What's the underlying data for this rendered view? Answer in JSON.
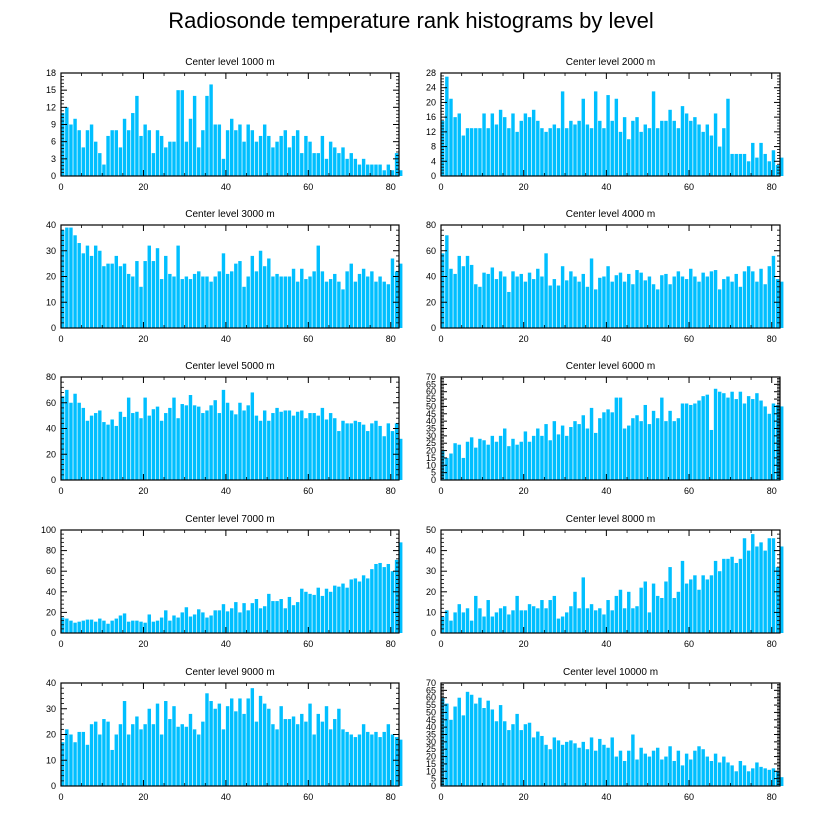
{
  "title": "Radiosonde temperature rank histograms by level",
  "bar_color": "#00bfff",
  "chart_data": [
    {
      "type": "bar",
      "title": "Center level 1000 m",
      "xlim": [
        0,
        82
      ],
      "xticks": [
        0,
        20,
        40,
        60,
        80
      ],
      "ylim": [
        0,
        18
      ],
      "yticks": [
        0,
        3,
        6,
        9,
        12,
        15,
        18
      ],
      "values": [
        11,
        12,
        9,
        10,
        8,
        5,
        8,
        9,
        6,
        4,
        2,
        7,
        8,
        8,
        5,
        10,
        8,
        11,
        14,
        7,
        9,
        8,
        4,
        8,
        7,
        5,
        6,
        6,
        15,
        15,
        6,
        10,
        14,
        5,
        8,
        14,
        16,
        9,
        9,
        3,
        8,
        10,
        8,
        9,
        6,
        9,
        8,
        6,
        7,
        9,
        7,
        5,
        6,
        7,
        8,
        5,
        7,
        8,
        4,
        7,
        6,
        4,
        4,
        7,
        3,
        6,
        5,
        4,
        5,
        3,
        4,
        3,
        2,
        3,
        2,
        2,
        2,
        2,
        1,
        2,
        1,
        4,
        1
      ]
    },
    {
      "type": "bar",
      "title": "Center level 2000 m",
      "xlim": [
        0,
        82
      ],
      "xticks": [
        0,
        20,
        40,
        60,
        80
      ],
      "ylim": [
        0,
        28
      ],
      "yticks": [
        0,
        4,
        8,
        12,
        16,
        20,
        24,
        28
      ],
      "values": [
        15,
        27,
        21,
        16,
        17,
        11,
        13,
        13,
        13,
        13,
        17,
        13,
        17,
        14,
        18,
        16,
        13,
        17,
        12,
        15,
        17,
        16,
        18,
        15,
        13,
        12,
        13,
        14,
        13,
        23,
        13,
        15,
        14,
        15,
        21,
        14,
        13,
        23,
        15,
        13,
        22,
        15,
        21,
        12,
        16,
        10,
        15,
        16,
        12,
        14,
        13,
        23,
        13,
        15,
        15,
        18,
        15,
        13,
        19,
        17,
        15,
        16,
        14,
        12,
        14,
        11,
        17,
        8,
        13,
        21,
        6,
        6,
        6,
        6,
        4,
        9,
        5,
        9,
        6,
        4,
        7,
        3,
        5
      ]
    },
    {
      "type": "bar",
      "title": "Center level 3000 m",
      "xlim": [
        0,
        82
      ],
      "xticks": [
        0,
        20,
        40,
        60,
        80
      ],
      "ylim": [
        0,
        40
      ],
      "yticks": [
        0,
        10,
        20,
        30,
        40
      ],
      "values": [
        38,
        39,
        39,
        36,
        33,
        29,
        32,
        28,
        32,
        30,
        24,
        25,
        25,
        28,
        24,
        25,
        21,
        20,
        26,
        16,
        26,
        32,
        26,
        31,
        19,
        28,
        21,
        20,
        32,
        19,
        20,
        19,
        21,
        22,
        20,
        20,
        18,
        20,
        22,
        29,
        21,
        22,
        25,
        26,
        16,
        20,
        28,
        22,
        30,
        24,
        27,
        20,
        21,
        20,
        20,
        20,
        23,
        18,
        23,
        19,
        20,
        22,
        32,
        22,
        18,
        19,
        21,
        18,
        15,
        22,
        25,
        18,
        21,
        23,
        20,
        22,
        18,
        20,
        18,
        17,
        27,
        22,
        25
      ]
    },
    {
      "type": "bar",
      "title": "Center level 4000 m",
      "xlim": [
        0,
        82
      ],
      "xticks": [
        0,
        20,
        40,
        60,
        80
      ],
      "ylim": [
        0,
        80
      ],
      "yticks": [
        0,
        20,
        40,
        60,
        80
      ],
      "values": [
        58,
        72,
        46,
        42,
        56,
        48,
        56,
        49,
        34,
        32,
        43,
        42,
        47,
        38,
        44,
        40,
        28,
        44,
        40,
        42,
        36,
        43,
        38,
        46,
        40,
        58,
        33,
        38,
        33,
        48,
        37,
        44,
        40,
        36,
        42,
        32,
        54,
        30,
        39,
        40,
        48,
        36,
        41,
        43,
        36,
        42,
        34,
        45,
        43,
        37,
        40,
        34,
        30,
        41,
        42,
        34,
        40,
        44,
        40,
        38,
        46,
        40,
        36,
        43,
        40,
        44,
        45,
        30,
        38,
        40,
        36,
        42,
        32,
        44,
        48,
        44,
        36,
        46,
        34,
        48,
        56,
        38,
        36
      ]
    },
    {
      "type": "bar",
      "title": "Center level 5000 m",
      "xlim": [
        0,
        82
      ],
      "xticks": [
        0,
        20,
        40,
        60,
        80
      ],
      "ylim": [
        0,
        80
      ],
      "yticks": [
        0,
        20,
        40,
        60,
        80
      ],
      "values": [
        65,
        70,
        60,
        67,
        60,
        56,
        46,
        50,
        52,
        54,
        45,
        43,
        47,
        42,
        53,
        49,
        64,
        52,
        53,
        48,
        64,
        50,
        55,
        57,
        46,
        52,
        56,
        64,
        48,
        59,
        58,
        66,
        58,
        57,
        52,
        54,
        58,
        62,
        52,
        70,
        60,
        54,
        51,
        60,
        54,
        58,
        68,
        50,
        46,
        54,
        46,
        52,
        56,
        53,
        54,
        54,
        50,
        53,
        54,
        48,
        52,
        52,
        50,
        56,
        47,
        52,
        48,
        38,
        46,
        44,
        44,
        46,
        45,
        43,
        38,
        44,
        46,
        42,
        34,
        44,
        38,
        44,
        32
      ]
    },
    {
      "type": "bar",
      "title": "Center level 6000 m",
      "xlim": [
        0,
        82
      ],
      "xticks": [
        0,
        20,
        40,
        60,
        80
      ],
      "ylim": [
        0,
        70
      ],
      "yticks": [
        0,
        5,
        10,
        15,
        20,
        25,
        30,
        35,
        40,
        45,
        50,
        55,
        60,
        65,
        70
      ],
      "values": [
        20,
        15,
        18,
        25,
        24,
        15,
        26,
        29,
        22,
        28,
        27,
        24,
        30,
        26,
        30,
        35,
        23,
        28,
        24,
        26,
        33,
        26,
        30,
        35,
        30,
        38,
        27,
        40,
        31,
        37,
        30,
        36,
        40,
        38,
        44,
        35,
        49,
        32,
        42,
        46,
        48,
        46,
        56,
        56,
        35,
        37,
        42,
        44,
        40,
        51,
        38,
        47,
        42,
        56,
        40,
        47,
        40,
        42,
        52,
        52,
        51,
        52,
        54,
        57,
        58,
        34,
        62,
        60,
        59,
        56,
        60,
        55,
        60,
        52,
        57,
        55,
        59,
        54,
        50,
        45,
        52,
        51,
        50
      ]
    },
    {
      "type": "bar",
      "title": "Center level 7000 m",
      "xlim": [
        0,
        82
      ],
      "xticks": [
        0,
        20,
        40,
        60,
        80
      ],
      "ylim": [
        0,
        100
      ],
      "yticks": [
        0,
        20,
        40,
        60,
        80,
        100
      ],
      "values": [
        15,
        14,
        12,
        10,
        11,
        12,
        13,
        13,
        11,
        14,
        12,
        9,
        12,
        14,
        17,
        19,
        11,
        12,
        12,
        11,
        10,
        18,
        11,
        12,
        15,
        22,
        12,
        17,
        15,
        20,
        25,
        16,
        18,
        23,
        20,
        15,
        17,
        22,
        22,
        28,
        21,
        24,
        30,
        20,
        29,
        22,
        29,
        33,
        24,
        26,
        38,
        31,
        31,
        33,
        24,
        35,
        27,
        30,
        43,
        40,
        38,
        37,
        44,
        36,
        43,
        40,
        46,
        45,
        48,
        44,
        52,
        53,
        50,
        56,
        53,
        62,
        67,
        68,
        64,
        67,
        60,
        71,
        88
      ]
    },
    {
      "type": "bar",
      "title": "Center level 8000 m",
      "xlim": [
        0,
        82
      ],
      "xticks": [
        0,
        20,
        40,
        60,
        80
      ],
      "ylim": [
        0,
        50
      ],
      "yticks": [
        0,
        10,
        20,
        30,
        40,
        50
      ],
      "values": [
        8,
        11,
        6,
        10,
        14,
        10,
        12,
        6,
        18,
        12,
        8,
        16,
        8,
        10,
        12,
        13,
        9,
        11,
        18,
        11,
        11,
        14,
        13,
        12,
        16,
        12,
        16,
        18,
        7,
        8,
        10,
        13,
        20,
        12,
        27,
        12,
        14,
        11,
        12,
        9,
        16,
        11,
        18,
        21,
        12,
        20,
        12,
        13,
        22,
        25,
        10,
        24,
        18,
        17,
        25,
        32,
        17,
        20,
        35,
        24,
        26,
        28,
        21,
        28,
        26,
        28,
        35,
        30,
        36,
        36,
        37,
        34,
        36,
        46,
        40,
        48,
        42,
        44,
        40,
        46,
        46,
        32,
        42
      ]
    },
    {
      "type": "bar",
      "title": "Center level 9000 m",
      "xlim": [
        0,
        82
      ],
      "xticks": [
        0,
        20,
        40,
        60,
        80
      ],
      "ylim": [
        0,
        40
      ],
      "yticks": [
        0,
        10,
        20,
        30,
        40
      ],
      "values": [
        17,
        22,
        20,
        17,
        21,
        21,
        16,
        24,
        25,
        20,
        26,
        25,
        14,
        20,
        24,
        33,
        20,
        24,
        27,
        22,
        24,
        30,
        24,
        32,
        20,
        33,
        26,
        31,
        23,
        24,
        23,
        28,
        22,
        20,
        25,
        36,
        33,
        30,
        32,
        22,
        31,
        34,
        29,
        34,
        28,
        34,
        38,
        25,
        35,
        32,
        30,
        24,
        22,
        31,
        26,
        26,
        27,
        24,
        28,
        25,
        32,
        20,
        28,
        25,
        31,
        22,
        26,
        30,
        22,
        21,
        20,
        19,
        20,
        24,
        21,
        20,
        21,
        19,
        21,
        24,
        20,
        19,
        18
      ]
    },
    {
      "type": "bar",
      "title": "Center level 10000 m",
      "xlim": [
        0,
        82
      ],
      "xticks": [
        0,
        20,
        40,
        60,
        80
      ],
      "ylim": [
        0,
        70
      ],
      "yticks": [
        0,
        5,
        10,
        15,
        20,
        25,
        30,
        35,
        40,
        45,
        50,
        55,
        60,
        65,
        70
      ],
      "values": [
        60,
        56,
        45,
        54,
        60,
        48,
        64,
        62,
        56,
        60,
        53,
        58,
        52,
        44,
        55,
        44,
        38,
        42,
        49,
        38,
        42,
        43,
        33,
        37,
        34,
        28,
        25,
        33,
        31,
        28,
        30,
        31,
        29,
        26,
        30,
        25,
        33,
        24,
        32,
        28,
        26,
        33,
        20,
        24,
        17,
        24,
        35,
        18,
        26,
        22,
        20,
        24,
        26,
        18,
        20,
        27,
        17,
        24,
        14,
        22,
        18,
        24,
        27,
        25,
        20,
        17,
        22,
        16,
        20,
        16,
        14,
        10,
        17,
        14,
        10,
        12,
        16,
        13,
        12,
        11,
        12,
        10,
        6
      ]
    }
  ]
}
